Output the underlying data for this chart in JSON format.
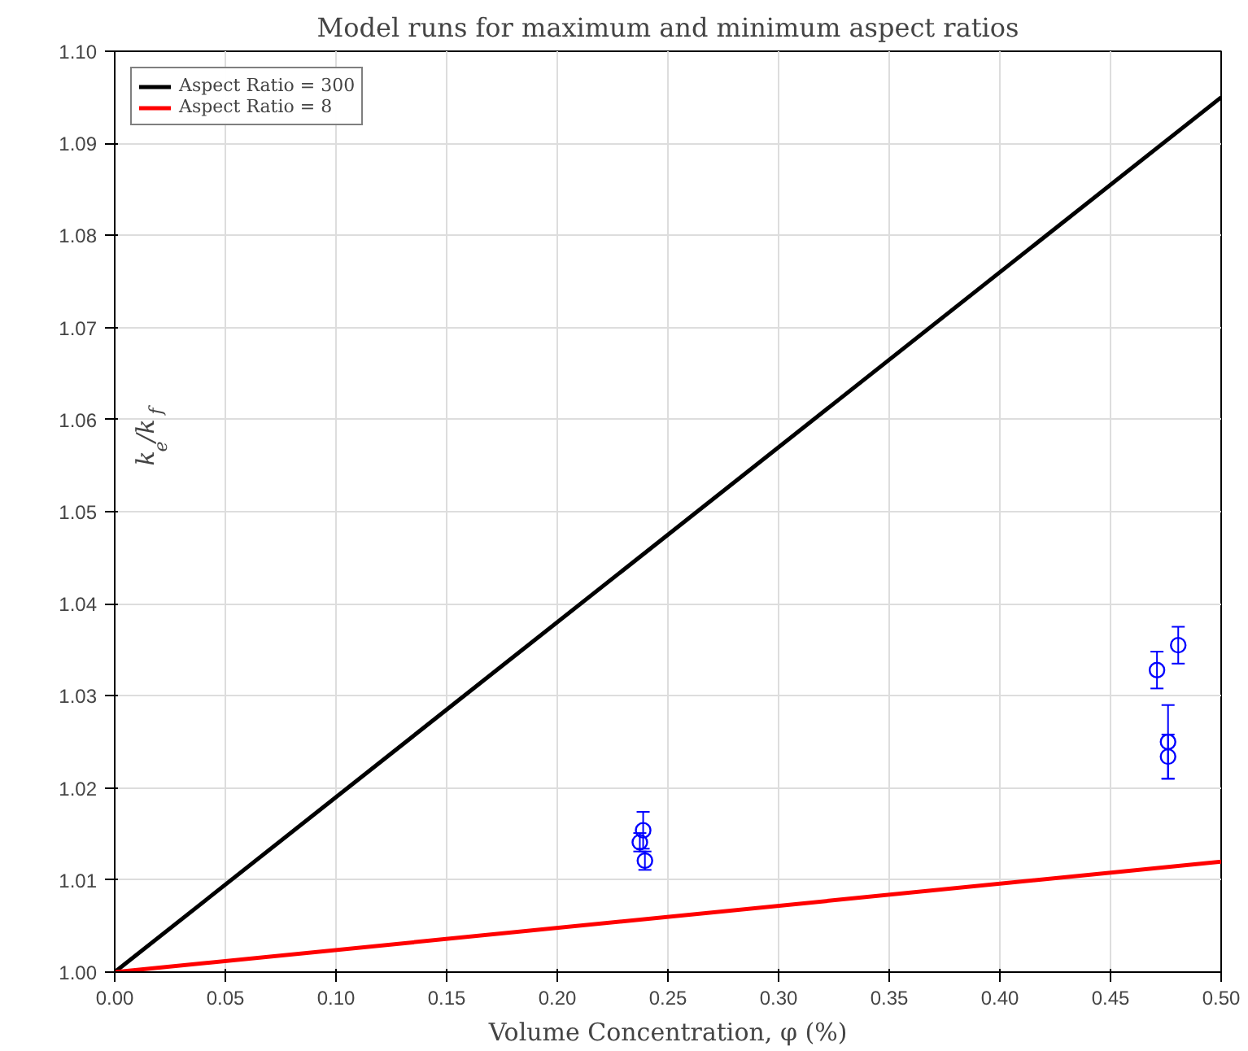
{
  "chart_data": {
    "type": "line",
    "title": "Model runs for maximum and minimum aspect ratios",
    "xlabel": "Volume Concentration, φ (%)",
    "ylabel": "k$_{e}$/k$_{f}$",
    "series": [
      {
        "name": "Aspect Ratio = 300",
        "color": "#000000",
        "x": [
          0,
          0.5
        ],
        "values": [
          1.0,
          1.095
        ]
      },
      {
        "name": "Aspect Ratio = 8",
        "color": "#ff0000",
        "x": [
          0,
          0.5
        ],
        "values": [
          1.0,
          1.012
        ]
      },
      {
        "type": "scatter",
        "color": "#0000ff",
        "marker": "circle",
        "x": [
          0.2388,
          0.2373,
          0.2396,
          0.471,
          0.4806,
          0.476,
          0.476
        ],
        "values": [
          1.0154,
          1.0141,
          1.0121,
          1.0328,
          1.0355,
          1.025,
          1.0234
        ],
        "errors": [
          0.002,
          0.001,
          0.001,
          0.002,
          0.002,
          0.004,
          0.0024
        ]
      }
    ],
    "xlim": [
      0,
      0.5
    ],
    "xticks": [
      {
        "value": 0,
        "label": "0.00"
      },
      0.05,
      {
        "value": 0.1,
        "label": "0.10"
      },
      0.15,
      {
        "value": 0.2,
        "label": "0.20"
      },
      0.25,
      {
        "value": 0.3,
        "label": "0.30"
      },
      0.35,
      {
        "value": 0.4,
        "label": "0.40"
      },
      0.45,
      {
        "value": 0.5,
        "label": "0.50"
      }
    ],
    "ylim": [
      1.0,
      1.1
    ],
    "yticks": [
      {
        "value": 1.0,
        "label": "1.00"
      },
      1.01,
      1.02,
      1.03,
      1.04,
      1.05,
      1.06,
      1.07,
      1.08,
      1.09,
      {
        "value": 1.1,
        "label": "1.10"
      }
    ],
    "grid": true,
    "legend": "top left",
    "line_style": "solid"
  }
}
